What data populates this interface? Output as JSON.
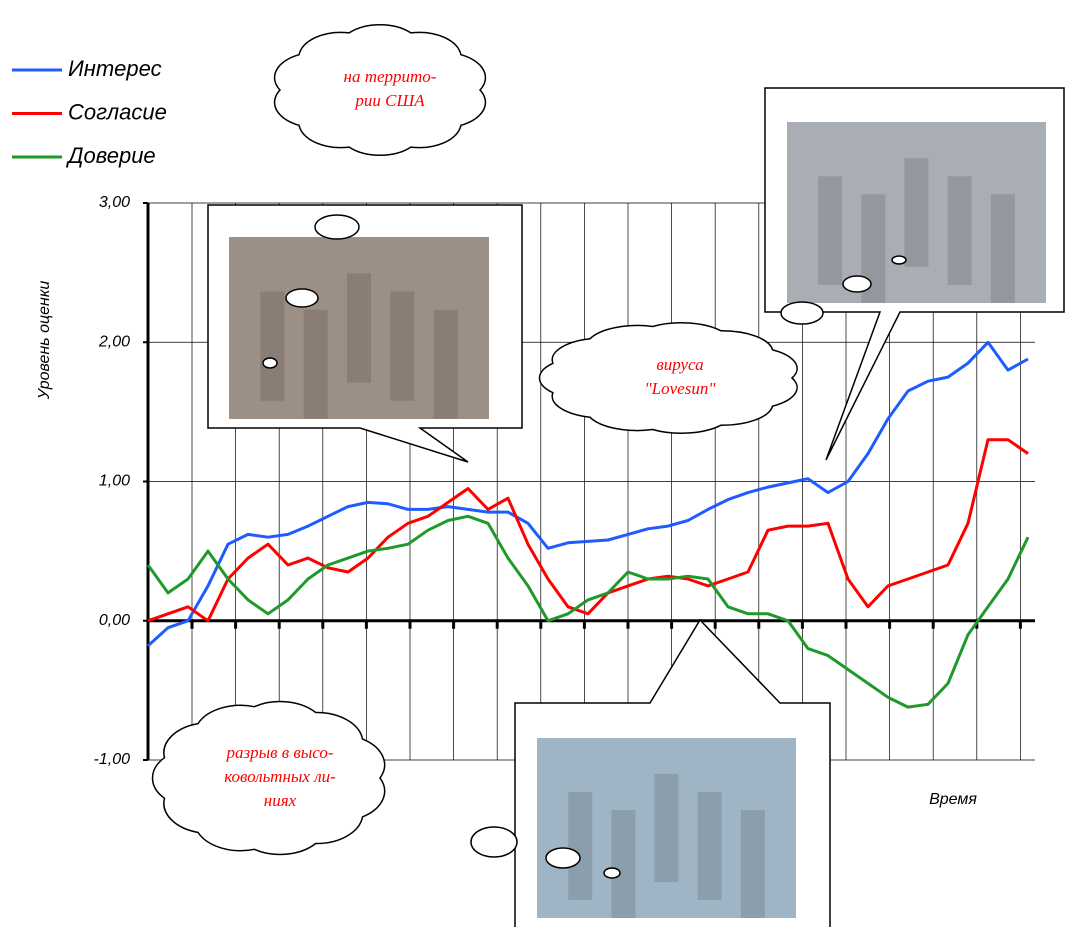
{
  "chart_data": {
    "type": "line",
    "ylabel": "Уровень оценки",
    "xlabel": "Время",
    "ylim": [
      -1,
      3
    ],
    "yticks": [
      {
        "value": 3,
        "label": "3,00"
      },
      {
        "value": 2,
        "label": "2,00"
      },
      {
        "value": 1,
        "label": "1,00"
      },
      {
        "value": 0,
        "label": "0,00"
      },
      {
        "value": -1,
        "label": "-1,00"
      }
    ],
    "grid": true,
    "series": [
      {
        "name": "Интерес",
        "color": "#1f5cff",
        "values": [
          -0.18,
          -0.05,
          0.0,
          0.25,
          0.55,
          0.62,
          0.6,
          0.62,
          0.68,
          0.75,
          0.82,
          0.85,
          0.84,
          0.8,
          0.8,
          0.82,
          0.8,
          0.78,
          0.78,
          0.7,
          0.52,
          0.56,
          0.57,
          0.58,
          0.62,
          0.66,
          0.68,
          0.72,
          0.8,
          0.87,
          0.92,
          0.96,
          0.99,
          1.02,
          0.92,
          1.0,
          1.2,
          1.45,
          1.65,
          1.72,
          1.75,
          1.85,
          2.0,
          1.8,
          1.88
        ]
      },
      {
        "name": "Согласие",
        "color": "#ff0000",
        "values": [
          0.0,
          0.05,
          0.1,
          0.0,
          0.3,
          0.45,
          0.55,
          0.4,
          0.45,
          0.38,
          0.35,
          0.45,
          0.6,
          0.7,
          0.75,
          0.85,
          0.95,
          0.8,
          0.88,
          0.55,
          0.3,
          0.1,
          0.05,
          0.2,
          0.25,
          0.3,
          0.32,
          0.3,
          0.25,
          0.3,
          0.35,
          0.65,
          0.68,
          0.68,
          0.7,
          0.3,
          0.1,
          0.25,
          0.3,
          0.35,
          0.4,
          0.7,
          1.3,
          1.3,
          1.2
        ]
      },
      {
        "name": "Доверие",
        "color": "#1f9a2a",
        "values": [
          0.4,
          0.2,
          0.3,
          0.5,
          0.3,
          0.15,
          0.05,
          0.15,
          0.3,
          0.4,
          0.45,
          0.5,
          0.52,
          0.55,
          0.65,
          0.72,
          0.75,
          0.7,
          0.45,
          0.25,
          0.0,
          0.05,
          0.15,
          0.2,
          0.35,
          0.3,
          0.3,
          0.32,
          0.3,
          0.1,
          0.05,
          0.05,
          0.0,
          -0.2,
          -0.25,
          -0.35,
          -0.45,
          -0.55,
          -0.62,
          -0.6,
          -0.45,
          -0.1,
          0.1,
          0.3,
          0.6
        ]
      }
    ],
    "annotations": [
      {
        "lines": [
          "на террито-",
          "рии США"
        ]
      },
      {
        "lines": [
          "вируса",
          "\"Lovesun\""
        ]
      },
      {
        "lines": [
          "разрыв в высо-",
          "ковольтных ли-",
          "ниях"
        ]
      }
    ]
  }
}
